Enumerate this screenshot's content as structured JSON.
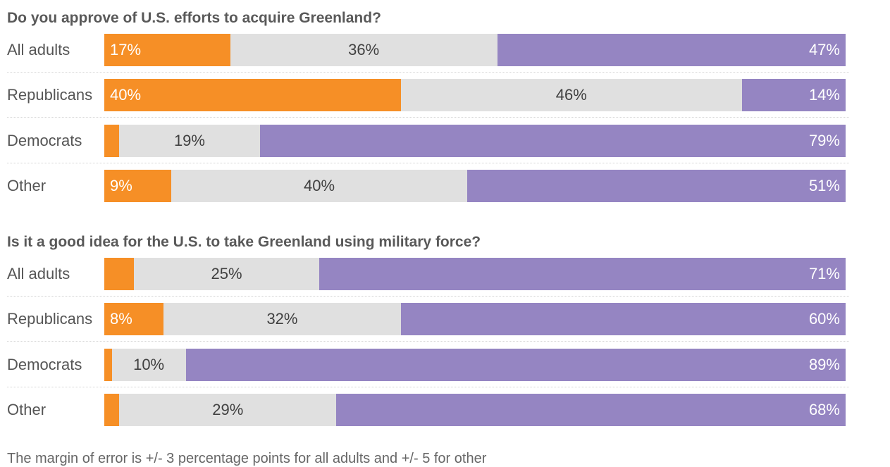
{
  "chart_data": [
    {
      "type": "bar",
      "orientation": "horizontal",
      "stacked": true,
      "title": "Do you approve of U.S. efforts to acquire Greenland?",
      "categories": [
        "All adults",
        "Republicans",
        "Democrats",
        "Other"
      ],
      "series": [
        {
          "key": "a",
          "values": [
            17,
            40,
            2,
            9
          ],
          "labels": [
            "17%",
            "40%",
            "",
            "9%"
          ]
        },
        {
          "key": "b",
          "values": [
            36,
            46,
            19,
            40
          ],
          "labels": [
            "36%",
            "46%",
            "19%",
            "40%"
          ]
        },
        {
          "key": "c",
          "values": [
            47,
            14,
            79,
            51
          ],
          "labels": [
            "47%",
            "14%",
            "79%",
            "51%"
          ]
        }
      ],
      "xlim": [
        0,
        100
      ],
      "grid": false
    },
    {
      "type": "bar",
      "orientation": "horizontal",
      "stacked": true,
      "title": "Is it a good idea for the U.S. to take Greenland using military force?",
      "categories": [
        "All adults",
        "Republicans",
        "Democrats",
        "Other"
      ],
      "series": [
        {
          "key": "a",
          "values": [
            4,
            8,
            1,
            2
          ],
          "labels": [
            "",
            "8%",
            "",
            ""
          ]
        },
        {
          "key": "b",
          "values": [
            25,
            32,
            10,
            29
          ],
          "labels": [
            "25%",
            "32%",
            "10%",
            "29%"
          ]
        },
        {
          "key": "c",
          "values": [
            71,
            60,
            89,
            68
          ],
          "labels": [
            "71%",
            "60%",
            "89%",
            "68%"
          ]
        }
      ],
      "xlim": [
        0,
        100
      ],
      "grid": false
    }
  ],
  "colors": {
    "a": "#f68f26",
    "b": "#e0e0e0",
    "c": "#9585c2",
    "label_on_a": "#ffffff",
    "label_on_b": "#404040",
    "label_on_c": "#ffffff"
  },
  "footnote": "The margin of error is +/- 3 percentage points for all adults and +/- 5 for other"
}
